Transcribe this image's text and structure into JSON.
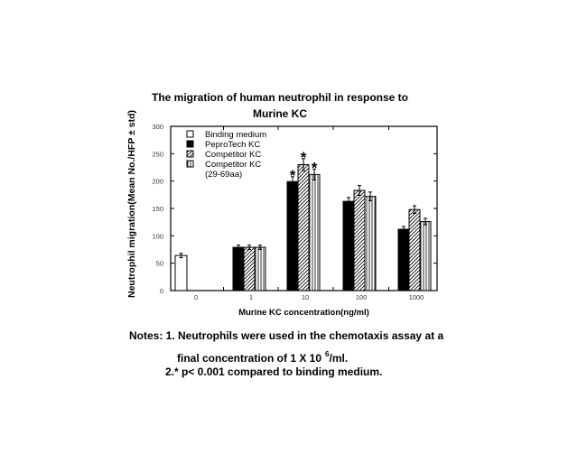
{
  "chart_data": {
    "type": "bar",
    "title": "The migration of human neutrophil in response to Murine KC",
    "title_lines": [
      "The migration of human neutrophil in response to",
      "Murine KC"
    ],
    "xlabel": "Murine KC concentration(ng/ml)",
    "ylabel": "Neutrophil migration(Mean No./HFP ± std)",
    "ylim": [
      0,
      300
    ],
    "yticks": [
      0,
      50,
      100,
      150,
      200,
      250,
      300
    ],
    "categories": [
      "0",
      "1",
      "10",
      "100",
      "1000"
    ],
    "grid": false,
    "legend_position": "upper-left inside",
    "series": [
      {
        "name": "Binding medium",
        "pattern": "white",
        "values": [
          64,
          null,
          null,
          null,
          null
        ],
        "errors": [
          4,
          null,
          null,
          null,
          null
        ]
      },
      {
        "name": "PeproTech KC",
        "pattern": "black",
        "values": [
          null,
          79,
          199,
          163,
          112
        ],
        "errors": [
          null,
          4,
          9,
          7,
          5
        ]
      },
      {
        "name": "Competitor KC",
        "pattern": "diagonal-hatch",
        "values": [
          null,
          79,
          230,
          183,
          148
        ],
        "errors": [
          null,
          4,
          11,
          9,
          7
        ]
      },
      {
        "name": "Competitor KC (29-69aa)",
        "pattern": "vertical-stripes",
        "values": [
          null,
          79,
          212,
          172,
          126
        ],
        "errors": [
          null,
          4,
          10,
          8,
          6
        ]
      }
    ],
    "annotations": [
      {
        "text": "*",
        "category": "10",
        "series": "PeproTech KC"
      },
      {
        "text": "*",
        "category": "10",
        "series": "Competitor KC"
      },
      {
        "text": "*",
        "category": "10",
        "series": "Competitor KC (29-69aa)"
      }
    ]
  },
  "legend": {
    "items": [
      {
        "label": "Binding medium"
      },
      {
        "label": "PeproTech KC"
      },
      {
        "label": "Competitor KC"
      },
      {
        "label": "Competitor KC"
      },
      {
        "label": "(29-69aa)"
      }
    ]
  },
  "notes": {
    "line1": "Notes: 1. Neutrophils were used in the chemotaxis assay at a",
    "line1b_pre": "final concentration of 1 X 10",
    "line1b_exp": "6",
    "line1b_post": "/ml.",
    "line2": "2.* p< 0.001 compared to binding medium."
  }
}
